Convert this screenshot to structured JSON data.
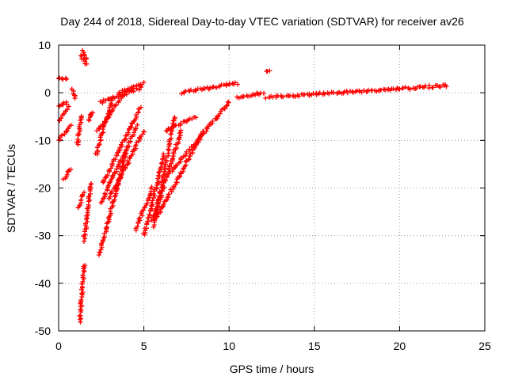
{
  "chart_data": {
    "type": "scatter",
    "title": "Day 244 of 2018, Sidereal Day-to-day VTEC variation (SDTVAR) for receiver av26",
    "xlabel": "GPS time / hours",
    "ylabel": "SDTVAR / TECUs",
    "xlim": [
      0,
      25
    ],
    "ylim": [
      -50,
      10
    ],
    "xticks": [
      0,
      5,
      10,
      15,
      20,
      25
    ],
    "yticks": [
      -50,
      -40,
      -30,
      -20,
      -10,
      0,
      10
    ],
    "xtick_labels": [
      "0",
      "5",
      "10",
      "15",
      "20",
      "25"
    ],
    "ytick_labels": [
      "-50",
      "-40",
      "-30",
      "-20",
      "-10",
      "0",
      "10"
    ],
    "grid": true,
    "marker": "+",
    "series_color": "#ff0000",
    "segments": [
      {
        "x": [
          0.0,
          0.5
        ],
        "y": [
          3,
          3
        ]
      },
      {
        "x": [
          0.0,
          0.5
        ],
        "y": [
          -3,
          -2
        ]
      },
      {
        "x": [
          0.0,
          0.6
        ],
        "y": [
          -6,
          -3
        ]
      },
      {
        "x": [
          0.0,
          0.7
        ],
        "y": [
          -10,
          -7
        ]
      },
      {
        "x": [
          0.3,
          0.7
        ],
        "y": [
          -18,
          -16
        ]
      },
      {
        "x": [
          0.8,
          1.0
        ],
        "y": [
          1,
          -1
        ]
      },
      {
        "x": [
          1.1,
          1.35
        ],
        "y": [
          -11,
          -5
        ]
      },
      {
        "x": [
          1.2,
          1.5
        ],
        "y": [
          -24,
          -21
        ]
      },
      {
        "x": [
          1.3,
          1.6
        ],
        "y": [
          8,
          6
        ]
      },
      {
        "x": [
          1.4,
          1.6
        ],
        "y": [
          9,
          7
        ]
      },
      {
        "x": [
          1.25,
          1.5
        ],
        "y": [
          -48,
          -36
        ]
      },
      {
        "x": [
          1.5,
          1.9
        ],
        "y": [
          -31,
          -19
        ]
      },
      {
        "x": [
          1.8,
          1.95
        ],
        "y": [
          -6,
          -4
        ]
      },
      {
        "x": [
          2.2,
          3.2
        ],
        "y": [
          -13,
          -1
        ]
      },
      {
        "x": [
          2.3,
          3.9
        ],
        "y": [
          -8,
          0
        ]
      },
      {
        "x": [
          2.5,
          4.8
        ],
        "y": [
          -2,
          1
        ]
      },
      {
        "x": [
          2.5,
          4.6
        ],
        "y": [
          -23,
          -7
        ]
      },
      {
        "x": [
          2.4,
          4.0
        ],
        "y": [
          -34,
          -12
        ]
      },
      {
        "x": [
          2.6,
          4.8
        ],
        "y": [
          -19,
          -3
        ]
      },
      {
        "x": [
          3.0,
          5.0
        ],
        "y": [
          -22,
          -8
        ]
      },
      {
        "x": [
          3.5,
          5.0
        ],
        "y": [
          0,
          2
        ]
      },
      {
        "x": [
          4.5,
          5.5
        ],
        "y": [
          -29,
          -20
        ]
      },
      {
        "x": [
          5.0,
          6.2
        ],
        "y": [
          -30,
          -13
        ]
      },
      {
        "x": [
          5.5,
          7.2
        ],
        "y": [
          -27,
          -8
        ]
      },
      {
        "x": [
          5.6,
          6.8
        ],
        "y": [
          -28,
          -5
        ]
      },
      {
        "x": [
          5.8,
          8.5
        ],
        "y": [
          -26,
          -8
        ]
      },
      {
        "x": [
          6.5,
          10.0
        ],
        "y": [
          -17,
          -2
        ]
      },
      {
        "x": [
          6.3,
          8.0
        ],
        "y": [
          -8,
          -5
        ]
      },
      {
        "x": [
          7.2,
          10.5
        ],
        "y": [
          0,
          2
        ]
      },
      {
        "x": [
          10.5,
          12.0
        ],
        "y": [
          -1,
          0
        ]
      },
      {
        "x": [
          12.2,
          12.4
        ],
        "y": [
          4.5,
          4.5
        ]
      },
      {
        "x": [
          12.2,
          22.8
        ],
        "y": [
          -1,
          1.5
        ]
      }
    ]
  }
}
